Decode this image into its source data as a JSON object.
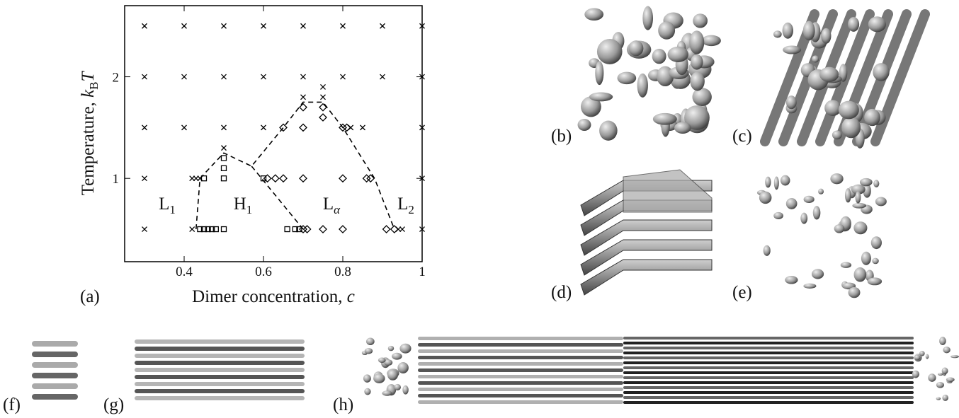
{
  "chart_data": {
    "type": "scatter",
    "xlabel": [
      "Dimer concentration, ",
      "c"
    ],
    "ylabel": [
      "Temperature, ",
      "k",
      "B",
      "T"
    ],
    "xlim": [
      0.25,
      1.0
    ],
    "xticks": [
      0.4,
      0.6,
      0.8,
      1
    ],
    "ylim": [
      0.18,
      2.7
    ],
    "yticks": [
      1,
      2
    ],
    "series": [
      {
        "marker": "x",
        "color": "#000000",
        "x": [
          0.3,
          0.4,
          0.5,
          0.6,
          0.7,
          0.8,
          0.9,
          1.0,
          0.3,
          0.4,
          0.5,
          0.6,
          0.7,
          0.8,
          0.9,
          1.0,
          0.3,
          0.4,
          0.5,
          0.6,
          0.82,
          0.85,
          1.0,
          0.3,
          0.42,
          0.43,
          0.44,
          1.0,
          0.3,
          0.42,
          0.94,
          0.95,
          1.0,
          0.5,
          0.7,
          0.75,
          0.75
        ],
        "y": [
          2.5,
          2.5,
          2.5,
          2.5,
          2.5,
          2.5,
          2.5,
          2.5,
          2,
          2,
          2,
          2,
          2,
          2,
          2,
          2,
          1.5,
          1.5,
          1.5,
          1.5,
          1.5,
          1.5,
          1.5,
          1,
          1,
          1,
          1,
          1,
          0.5,
          0.5,
          0.5,
          0.5,
          0.5,
          1.3,
          1.8,
          1.9,
          1.8
        ]
      },
      {
        "marker": "square",
        "color": "#000000",
        "x": [
          0.45,
          0.44,
          0.45,
          0.46,
          0.47,
          0.48,
          0.5,
          0.5,
          0.5,
          0.5,
          0.6,
          0.66,
          0.68,
          0.69
        ],
        "y": [
          1,
          0.5,
          0.5,
          0.5,
          0.5,
          0.5,
          0.5,
          1,
          1.1,
          1.2,
          1,
          0.5,
          0.5,
          0.5
        ]
      },
      {
        "marker": "diamond",
        "color": "#000000",
        "x": [
          0.61,
          0.63,
          0.65,
          0.7,
          0.8,
          0.86,
          0.87,
          0.7,
          0.71,
          0.75,
          0.8,
          0.91,
          0.93,
          0.65,
          0.7,
          0.8,
          0.81,
          0.7,
          0.75,
          0.75
        ],
        "y": [
          1,
          1,
          1,
          1,
          1,
          1,
          1,
          0.5,
          0.5,
          0.5,
          0.5,
          0.5,
          0.5,
          1.5,
          1.5,
          1.5,
          1.5,
          1.7,
          1.7,
          1.6
        ]
      }
    ],
    "boundaries": [
      {
        "x": [
          0.43,
          0.44,
          0.5,
          0.57,
          0.65,
          0.7,
          0.75,
          0.8,
          0.88,
          0.93
        ],
        "y": [
          0.5,
          1,
          1.25,
          1.12,
          1.5,
          1.75,
          1.75,
          1.5,
          1,
          0.5
        ]
      },
      {
        "x": [
          0.57,
          0.7
        ],
        "y": [
          1.12,
          0.5
        ]
      }
    ],
    "annotations": [
      {
        "text": "L",
        "sub": "1"
      },
      {
        "text": "H",
        "sub": "1"
      },
      {
        "text": "L",
        "sub": "α"
      },
      {
        "text": "L",
        "sub": "2"
      }
    ],
    "panel": "(a)"
  },
  "panels": [
    "(b)",
    "(c)",
    "(d)",
    "(e)",
    "(f)",
    "(g)",
    "(h)"
  ]
}
